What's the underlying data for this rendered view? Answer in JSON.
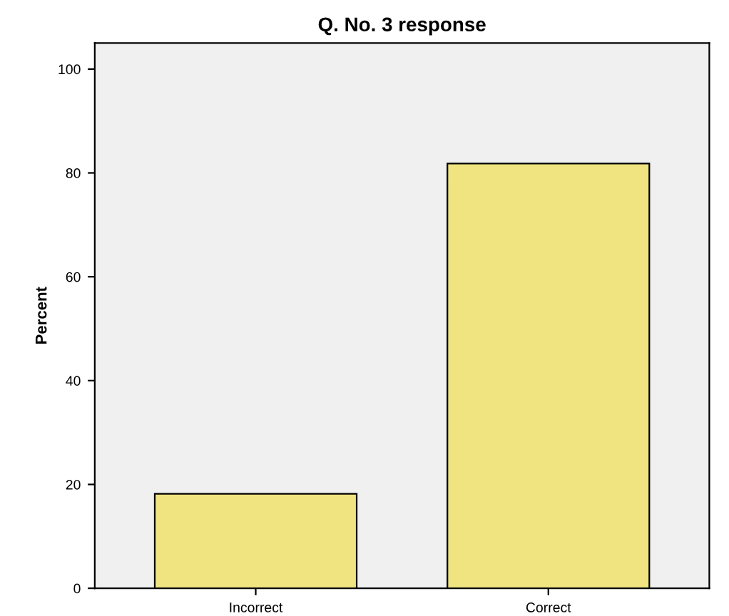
{
  "chart_data": {
    "type": "bar",
    "title": "Q. No. 3 response",
    "ylabel": "Percent",
    "categories": [
      "Incorrect",
      "Correct"
    ],
    "values": [
      18.2,
      81.8
    ],
    "color": "#f0e480",
    "ylim": [
      0,
      105
    ],
    "yticks": [
      0,
      20,
      40,
      60,
      80,
      100
    ],
    "grid": false
  }
}
